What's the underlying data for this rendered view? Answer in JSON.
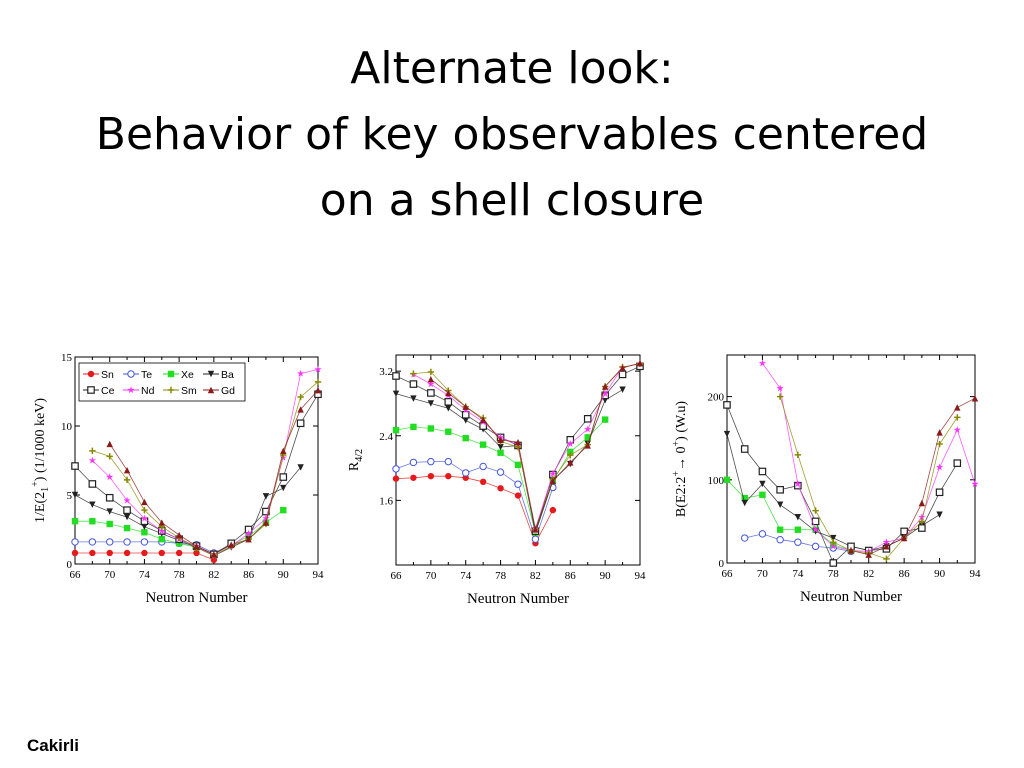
{
  "slide": {
    "title_lines": [
      "Alternate look:",
      "Behavior of key observables centered",
      "on a shell closure"
    ],
    "author": "Cakirli"
  },
  "styles": {
    "Sn": {
      "color": "#e41a1c",
      "marker": "circle-filled"
    },
    "Te": {
      "color": "#4455dd",
      "marker": "circle-open"
    },
    "Xe": {
      "color": "#22dd22",
      "marker": "square-filled"
    },
    "Ba": {
      "color": "#222222",
      "marker": "triangle-down-filled"
    },
    "Ce": {
      "color": "#222222",
      "marker": "square-open"
    },
    "Nd": {
      "color": "#ff33ff",
      "marker": "star"
    },
    "Sm": {
      "color": "#888800",
      "marker": "plus"
    },
    "Gd": {
      "color": "#8b1a1a",
      "marker": "triangle-up-filled"
    }
  },
  "chart_data": [
    {
      "type": "line",
      "xlabel": "Neutron Number",
      "ylabel": "1/E(2",
      "ylabel_sub": "1",
      "ylabel_sup": "+",
      "ylabel_tail": ") (1/1000 keV)",
      "xlim": [
        66,
        94
      ],
      "ylim": [
        0,
        15
      ],
      "xticks": [
        66,
        70,
        74,
        78,
        82,
        86,
        90,
        94
      ],
      "yticks": [
        0,
        5,
        10,
        15
      ],
      "legend": "top-left",
      "legend_entries": [
        "Sn",
        "Te",
        "Xe",
        "Ba",
        "Ce",
        "Nd",
        "Sm",
        "Gd"
      ],
      "series": [
        {
          "name": "Sn",
          "x": [
            66,
            68,
            70,
            72,
            74,
            76,
            78,
            80,
            82
          ],
          "y": [
            0.8,
            0.8,
            0.8,
            0.8,
            0.8,
            0.8,
            0.8,
            0.8,
            0.3
          ]
        },
        {
          "name": "Te",
          "x": [
            66,
            68,
            70,
            72,
            74,
            76,
            78,
            80,
            82,
            84
          ],
          "y": [
            1.6,
            1.6,
            1.6,
            1.6,
            1.6,
            1.6,
            1.5,
            1.4,
            0.8,
            1.4
          ]
        },
        {
          "name": "Xe",
          "x": [
            66,
            68,
            70,
            72,
            74,
            76,
            78,
            80,
            82,
            84,
            86,
            88,
            90
          ],
          "y": [
            3.1,
            3.1,
            2.9,
            2.6,
            2.3,
            1.8,
            1.5,
            1.2,
            0.7,
            1.4,
            2.0,
            3.0,
            3.9
          ]
        },
        {
          "name": "Ba",
          "x": [
            66,
            68,
            70,
            72,
            74,
            76,
            78,
            80,
            82,
            84,
            86,
            88,
            90,
            92
          ],
          "y": [
            5.0,
            4.3,
            3.8,
            3.4,
            2.7,
            2.2,
            1.7,
            1.2,
            0.6,
            1.2,
            1.8,
            4.9,
            5.5,
            7.0
          ]
        },
        {
          "name": "Ce",
          "x": [
            66,
            68,
            70,
            72,
            74,
            76,
            78,
            80,
            82,
            84,
            86,
            88,
            90,
            92,
            94
          ],
          "y": [
            7.1,
            5.8,
            4.8,
            3.9,
            3.1,
            2.4,
            1.8,
            1.3,
            0.7,
            1.5,
            2.5,
            3.8,
            6.3,
            10.2,
            12.3
          ]
        },
        {
          "name": "Nd",
          "x": [
            68,
            70,
            72,
            74,
            76,
            78,
            80,
            82,
            84,
            86,
            88,
            90,
            92,
            94
          ],
          "y": [
            7.5,
            6.3,
            4.6,
            3.3,
            2.4,
            1.8,
            1.3,
            0.6,
            1.3,
            2.2,
            3.3,
            7.7,
            13.8,
            14.1
          ]
        },
        {
          "name": "Sm",
          "x": [
            68,
            70,
            72,
            74,
            76,
            78,
            80,
            82,
            84,
            86,
            88,
            90,
            92,
            94
          ],
          "y": [
            8.2,
            7.8,
            6.1,
            3.9,
            2.7,
            1.9,
            1.2,
            0.6,
            1.3,
            1.8,
            2.9,
            7.9,
            12.1,
            13.2
          ]
        },
        {
          "name": "Gd",
          "x": [
            70,
            72,
            74,
            76,
            78,
            80,
            82,
            84,
            86,
            88,
            90,
            92,
            94
          ],
          "y": [
            8.7,
            6.8,
            4.5,
            3.0,
            2.1,
            1.3,
            0.7,
            1.4,
            1.8,
            3.0,
            8.2,
            11.2,
            12.6
          ]
        }
      ]
    },
    {
      "type": "line",
      "xlabel": "Neutron Number",
      "ylabel": "R",
      "ylabel_sub": "4/2",
      "xlim": [
        66,
        94
      ],
      "ylim": [
        0.8,
        3.4
      ],
      "xticks": [
        66,
        70,
        74,
        78,
        82,
        86,
        90,
        94
      ],
      "yticks": [
        1.6,
        2.4,
        3.2
      ],
      "series": [
        {
          "name": "Sn",
          "x": [
            66,
            68,
            70,
            72,
            74,
            76,
            78,
            80,
            82,
            84
          ],
          "y": [
            1.87,
            1.88,
            1.9,
            1.9,
            1.88,
            1.83,
            1.75,
            1.66,
            1.07,
            1.48
          ]
        },
        {
          "name": "Te",
          "x": [
            66,
            68,
            70,
            72,
            74,
            76,
            78,
            80,
            82,
            84
          ],
          "y": [
            1.99,
            2.07,
            2.08,
            2.08,
            1.94,
            2.02,
            1.95,
            1.8,
            1.12,
            1.76
          ]
        },
        {
          "name": "Xe",
          "x": [
            66,
            68,
            70,
            72,
            74,
            76,
            78,
            80,
            82,
            84,
            86,
            88,
            90
          ],
          "y": [
            2.47,
            2.51,
            2.49,
            2.45,
            2.37,
            2.29,
            2.19,
            2.04,
            1.2,
            1.84,
            2.2,
            2.38,
            2.6
          ]
        },
        {
          "name": "Ba",
          "x": [
            66,
            68,
            70,
            72,
            74,
            76,
            78,
            80,
            82,
            84,
            86,
            88,
            90,
            92
          ],
          "y": [
            2.92,
            2.86,
            2.8,
            2.74,
            2.59,
            2.48,
            2.26,
            2.28,
            1.2,
            1.85,
            2.05,
            2.3,
            2.84,
            2.97
          ]
        },
        {
          "name": "Ce",
          "x": [
            66,
            68,
            70,
            72,
            74,
            76,
            78,
            80,
            82,
            84,
            86,
            88,
            90,
            92,
            94
          ],
          "y": [
            3.14,
            3.04,
            2.93,
            2.82,
            2.66,
            2.52,
            2.38,
            2.28,
            1.22,
            1.92,
            2.35,
            2.61,
            2.9,
            3.16,
            3.26
          ]
        },
        {
          "name": "Nd",
          "x": [
            68,
            70,
            72,
            74,
            76,
            78,
            80,
            82,
            84,
            86,
            88,
            90,
            92,
            94
          ],
          "y": [
            3.16,
            3.04,
            2.9,
            2.72,
            2.57,
            2.38,
            2.29,
            1.25,
            1.93,
            2.3,
            2.48,
            2.92,
            3.25,
            3.29
          ]
        },
        {
          "name": "Sm",
          "x": [
            68,
            70,
            72,
            74,
            76,
            78,
            80,
            82,
            84,
            86,
            88,
            90,
            92,
            94
          ],
          "y": [
            3.17,
            3.19,
            2.96,
            2.76,
            2.62,
            2.33,
            2.26,
            1.24,
            1.86,
            2.16,
            2.29,
            3.01,
            3.25,
            3.29
          ]
        },
        {
          "name": "Gd",
          "x": [
            70,
            72,
            74,
            76,
            78,
            80,
            82,
            84,
            86,
            88,
            90,
            92,
            94
          ],
          "y": [
            3.1,
            2.93,
            2.76,
            2.6,
            2.35,
            2.32,
            1.24,
            1.84,
            2.07,
            2.28,
            3.01,
            3.24,
            3.3
          ]
        }
      ]
    },
    {
      "type": "line",
      "xlabel": "Neutron Number",
      "ylabel": "B(E2:2",
      "ylabel_sup": "+",
      "ylabel_mid": "→ 0",
      "ylabel_sup2": "+",
      "ylabel_tail": ") (W.u)",
      "xlim": [
        66,
        94
      ],
      "ylim": [
        0,
        250
      ],
      "xticks": [
        66,
        70,
        74,
        78,
        82,
        86,
        90,
        94
      ],
      "yticks": [
        0,
        100,
        200
      ],
      "series": [
        {
          "name": "Sn",
          "x": [],
          "y": []
        },
        {
          "name": "Te",
          "x": [
            68,
            70,
            72,
            74,
            76,
            78,
            80
          ],
          "y": [
            30,
            35,
            28,
            25,
            20,
            18,
            14
          ]
        },
        {
          "name": "Xe",
          "x": [
            66,
            68,
            70,
            72,
            74,
            76,
            78,
            80
          ],
          "y": [
            100,
            78,
            82,
            40,
            40,
            40,
            22,
            15
          ]
        },
        {
          "name": "Ba",
          "x": [
            66,
            68,
            70,
            72,
            74,
            76,
            78,
            80,
            82,
            84,
            86,
            88,
            90
          ],
          "y": [
            155,
            72,
            95,
            70,
            55,
            38,
            30,
            20,
            15,
            20,
            30,
            45,
            58
          ]
        },
        {
          "name": "Ce",
          "x": [
            66,
            68,
            70,
            72,
            74,
            76,
            78,
            80,
            82,
            84,
            86,
            88,
            90,
            92
          ],
          "y": [
            190,
            137,
            110,
            88,
            93,
            50,
            0,
            20,
            15,
            17,
            38,
            42,
            85,
            120
          ]
        },
        {
          "name": "Nd",
          "x": [
            70,
            72,
            74,
            76,
            78,
            80,
            82,
            84,
            86,
            88,
            90,
            92,
            94
          ],
          "y": [
            240,
            210,
            95,
            40,
            20,
            15,
            14,
            25,
            30,
            55,
            115,
            160,
            95
          ]
        },
        {
          "name": "Sm",
          "x": [
            72,
            74,
            76,
            78,
            80,
            82,
            84,
            86,
            88,
            90,
            92
          ],
          "y": [
            200,
            130,
            63,
            25,
            15,
            12,
            5,
            30,
            50,
            143,
            175
          ]
        },
        {
          "name": "Gd",
          "x": [
            80,
            82,
            84,
            86,
            88,
            90,
            92,
            94
          ],
          "y": [
            15,
            10,
            20,
            30,
            72,
            157,
            187,
            198
          ]
        }
      ]
    }
  ]
}
